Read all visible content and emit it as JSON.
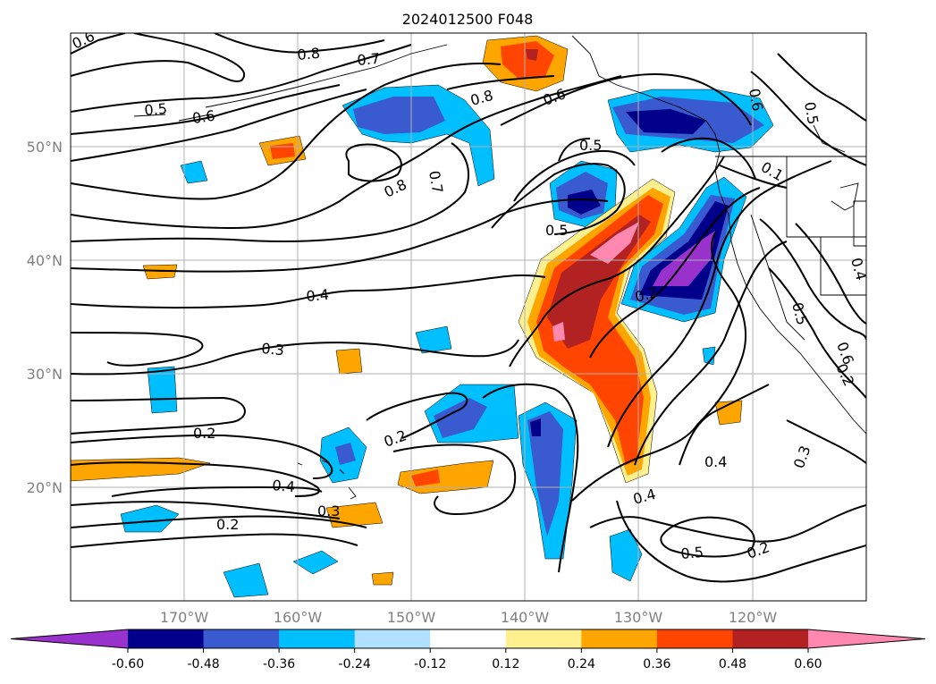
{
  "title": "2024012500 F048",
  "map": {
    "lon_range": [
      -180,
      -110
    ],
    "lat_range": [
      10,
      60
    ],
    "lon_ticks": [
      "170°W",
      "160°W",
      "150°W",
      "140°W",
      "130°W",
      "120°W"
    ],
    "lat_ticks": [
      "50°N",
      "40°N",
      "30°N",
      "20°N"
    ],
    "gridlines": true
  },
  "colorbar": {
    "orientation": "horizontal",
    "extend": "both",
    "ticks": [
      "-0.60",
      "-0.48",
      "-0.36",
      "-0.24",
      "-0.12",
      "0.12",
      "0.24",
      "0.36",
      "0.48",
      "0.60"
    ],
    "colors": [
      "#9932cc",
      "#00008b",
      "#3a5bd0",
      "#00bfff",
      "#b0e2ff",
      "#ffffff",
      "#fff08f",
      "#ffa500",
      "#ff4500",
      "#b22222",
      "#ff88b0"
    ]
  },
  "contour_labels": [
    "0.6",
    "0.8",
    "0.7",
    "0.5",
    "0.6",
    "0.8",
    "0.6",
    "0.5",
    "0.7",
    "0.8",
    "0.5",
    "0.6",
    "0.5",
    "0.1",
    "0.4",
    "0.2",
    "0.4",
    "0.3",
    "0.2",
    "0.2",
    "0.4",
    "0.2",
    "0.3",
    "0.2",
    "0.4",
    "0.5",
    "0.2",
    "0.3",
    "0.5",
    "0.6",
    "0.4"
  ]
}
